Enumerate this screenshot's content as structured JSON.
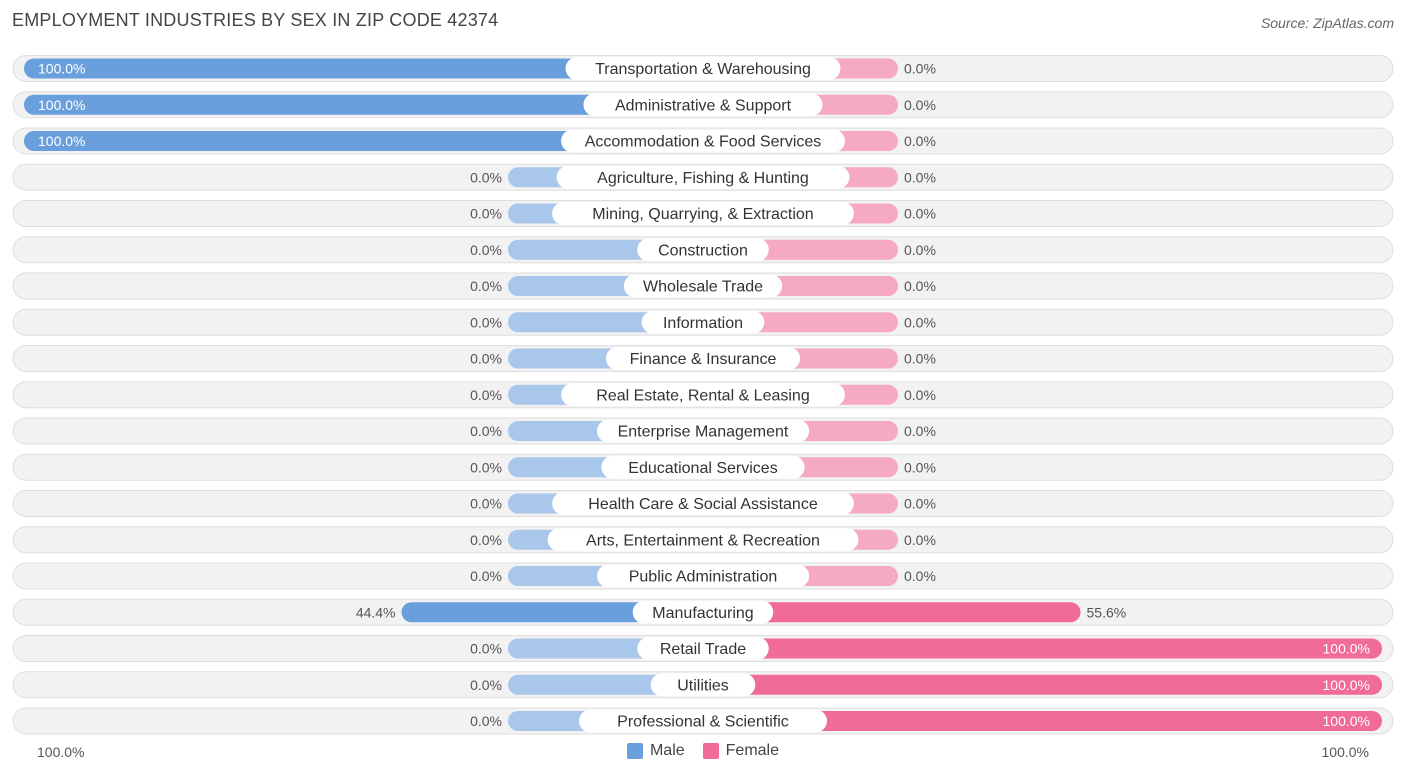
{
  "header": {
    "title": "EMPLOYMENT INDUSTRIES BY SEX IN ZIP CODE 42374",
    "source": "Source: ZipAtlas.com"
  },
  "axis": {
    "left_label": "100.0%",
    "right_label": "100.0%"
  },
  "legend": {
    "male_label": "Male",
    "female_label": "Female"
  },
  "colors": {
    "male_strong": "#6a9fdd",
    "male_light": "#a9c6eb",
    "female_strong": "#f06b95",
    "female_light": "#f5a9c2",
    "row_bg": "#f2f2f2",
    "row_border": "#dedede"
  },
  "chart_data": {
    "type": "bar",
    "orientation": "horizontal-diverging",
    "title": "EMPLOYMENT INDUSTRIES BY SEX IN ZIP CODE 42374",
    "categories": [
      "Transportation & Warehousing",
      "Administrative & Support",
      "Accommodation & Food Services",
      "Agriculture, Fishing & Hunting",
      "Mining, Quarrying, & Extraction",
      "Construction",
      "Wholesale Trade",
      "Information",
      "Finance & Insurance",
      "Real Estate, Rental & Leasing",
      "Enterprise Management",
      "Educational Services",
      "Health Care & Social Assistance",
      "Arts, Entertainment & Recreation",
      "Public Administration",
      "Manufacturing",
      "Retail Trade",
      "Utilities",
      "Professional & Scientific"
    ],
    "series": [
      {
        "name": "Male",
        "values": [
          100.0,
          100.0,
          100.0,
          0.0,
          0.0,
          0.0,
          0.0,
          0.0,
          0.0,
          0.0,
          0.0,
          0.0,
          0.0,
          0.0,
          0.0,
          44.4,
          0.0,
          0.0,
          0.0
        ],
        "labels": [
          "100.0%",
          "100.0%",
          "100.0%",
          "0.0%",
          "0.0%",
          "0.0%",
          "0.0%",
          "0.0%",
          "0.0%",
          "0.0%",
          "0.0%",
          "0.0%",
          "0.0%",
          "0.0%",
          "0.0%",
          "44.4%",
          "0.0%",
          "0.0%",
          "0.0%"
        ]
      },
      {
        "name": "Female",
        "values": [
          0.0,
          0.0,
          0.0,
          0.0,
          0.0,
          0.0,
          0.0,
          0.0,
          0.0,
          0.0,
          0.0,
          0.0,
          0.0,
          0.0,
          0.0,
          55.6,
          100.0,
          100.0,
          100.0
        ],
        "labels": [
          "0.0%",
          "0.0%",
          "0.0%",
          "0.0%",
          "0.0%",
          "0.0%",
          "0.0%",
          "0.0%",
          "0.0%",
          "0.0%",
          "0.0%",
          "0.0%",
          "0.0%",
          "0.0%",
          "0.0%",
          "55.6%",
          "100.0%",
          "100.0%",
          "100.0%"
        ]
      }
    ],
    "xlim": [
      -100,
      100
    ],
    "legend_position": "bottom-center"
  }
}
